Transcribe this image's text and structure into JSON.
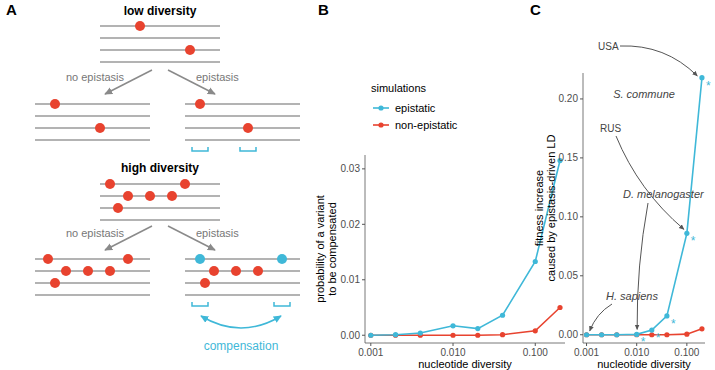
{
  "panel_labels": [
    "A",
    "B",
    "C"
  ],
  "diagram": {
    "scenarios": [
      {
        "title": "low diversity",
        "branches": [
          "no epistasis",
          "epistasis"
        ]
      },
      {
        "title": "high diversity",
        "branches": [
          "no epistasis",
          "epistasis"
        ],
        "effect": "compensation"
      }
    ]
  },
  "chart_data": [
    {
      "type": "line",
      "x": [
        0.001,
        0.002,
        0.004,
        0.01,
        0.02,
        0.04,
        0.1,
        0.2
      ],
      "series": [
        {
          "name": "epistatic",
          "color": "#3fb8d8",
          "values": [
            0,
            0.0001,
            0.0004,
            0.0017,
            0.0012,
            0.0036,
            0.0133,
            0.0315
          ]
        },
        {
          "name": "non-epistatic",
          "color": "#e8432f",
          "values": [
            0,
            0,
            0,
            0,
            0,
            0.0001,
            0.0008,
            0.005
          ]
        }
      ],
      "xlabel": "nucleotide diversity",
      "ylabel": [
        "probability of a variant",
        "to be compensated"
      ],
      "xlim": [
        0.00085,
        0.23
      ],
      "xticks": [
        0.001,
        {
          "value": 0.01,
          "label": "0.010"
        },
        {
          "value": 0.1,
          "label": "0.100"
        }
      ],
      "ylim": [
        -0.0014,
        0.0325
      ],
      "yticks": [
        {
          "value": 0,
          "label": "0.00"
        },
        {
          "value": 0.01,
          "label": "0.01"
        },
        {
          "value": 0.02,
          "label": "0.02"
        },
        {
          "value": 0.03,
          "label": "0.03"
        }
      ],
      "log": "x",
      "grid": false,
      "legend": "top-left",
      "legend_title": "simulations",
      "marker": "circle"
    },
    {
      "type": "line",
      "x": [
        0.001,
        0.002,
        0.004,
        0.01,
        0.02,
        0.04,
        0.1,
        0.2
      ],
      "series": [
        {
          "color": "#3fb8d8",
          "values": [
            0,
            0,
            0,
            0.0003,
            0.004,
            0.016,
            0.086,
            0.218
          ],
          "significant": [
            false,
            false,
            false,
            true,
            true,
            true,
            true,
            true
          ],
          "significance_label": "*"
        },
        {
          "color": "#e8432f",
          "values": [
            0,
            0,
            0,
            0,
            0,
            0,
            0.0005,
            0.005
          ]
        }
      ],
      "xlabel": "nucleotide diversity",
      "ylabel": [
        "fitness increase",
        "caused by epistasis-driven LD"
      ],
      "xlim": [
        0.00085,
        0.23
      ],
      "xticks": [
        0.001,
        {
          "value": 0.01,
          "label": "0.010"
        },
        {
          "value": 0.1,
          "label": "0.100"
        }
      ],
      "ylim": [
        -0.007,
        0.222
      ],
      "yticks": [
        {
          "value": 0,
          "label": "0.00"
        },
        {
          "value": 0.05,
          "label": "0.05"
        },
        {
          "value": 0.1,
          "label": "0.10"
        },
        {
          "value": 0.15,
          "label": "0.15"
        },
        {
          "value": 0.2,
          "label": "0.20"
        }
      ],
      "log": "x",
      "grid": false,
      "marker": "circle",
      "annotations": [
        {
          "text": "H. sapiens",
          "x": 0.001,
          "y": 0
        },
        {
          "text": "D. melanogaster",
          "x": 0.01,
          "y": 0.0003
        },
        {
          "text": "S. commune",
          "targets": [
            {
              "text": "USA",
              "x": 0.2,
              "y": 0.218
            },
            {
              "text": "RUS",
              "x": 0.1,
              "y": 0.086
            }
          ]
        }
      ]
    }
  ]
}
